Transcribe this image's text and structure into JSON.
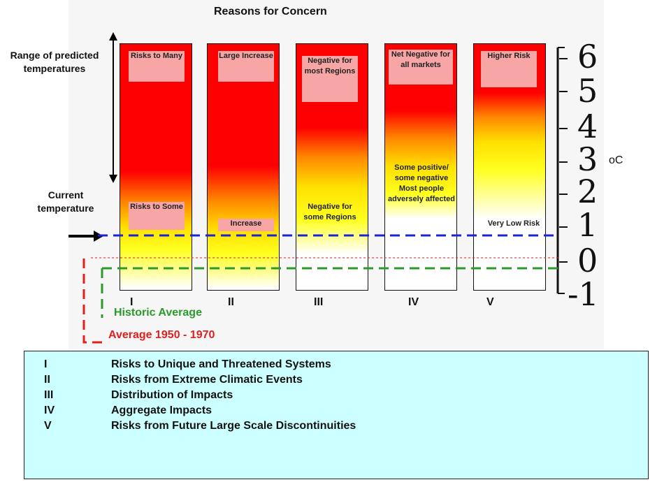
{
  "title": "Reasons for Concern",
  "range_label": "Range of predicted temperatures",
  "current_label": "Current temperature",
  "unit": "oC",
  "historic_label": "Historic Average",
  "average_label": "Average 1950 - 1970",
  "colors": {
    "red": "#ff0000",
    "yellow": "#ffff00",
    "blue_line": "#1a24d8",
    "green_line": "#2a9a2a",
    "red_line": "#e02020",
    "legend_bg": "#ccffff"
  },
  "columns": [
    {
      "numeral": "I",
      "top_box": "Risks to Many",
      "bottom_box": "Risks to Some"
    },
    {
      "numeral": "II",
      "top_box": "Large Increase",
      "bottom_box": "Increase"
    },
    {
      "numeral": "III",
      "top_box": "Negative for most Regions",
      "bottom_box": "Negative for some Regions"
    },
    {
      "numeral": "IV",
      "top_box": "Net Negative for all markets",
      "bottom_box": "Some positive/ some negative Most people adversely affected"
    },
    {
      "numeral": "V",
      "top_box": "Higher Risk",
      "bottom_box": "Very Low Risk"
    }
  ],
  "scale": [
    "6",
    "5",
    "4",
    "3",
    "2",
    "1",
    "0",
    "-1"
  ],
  "legend": [
    {
      "numeral": "I",
      "text": "Risks to Unique and Threatened Systems"
    },
    {
      "numeral": "II",
      "text": "Risks from Extreme Climatic Events"
    },
    {
      "numeral": "III",
      "text": "Distribution of Impacts"
    },
    {
      "numeral": "IV",
      "text": "Aggregate Impacts"
    },
    {
      "numeral": "V",
      "text": "Risks from Future Large Scale Discontinuities"
    }
  ]
}
